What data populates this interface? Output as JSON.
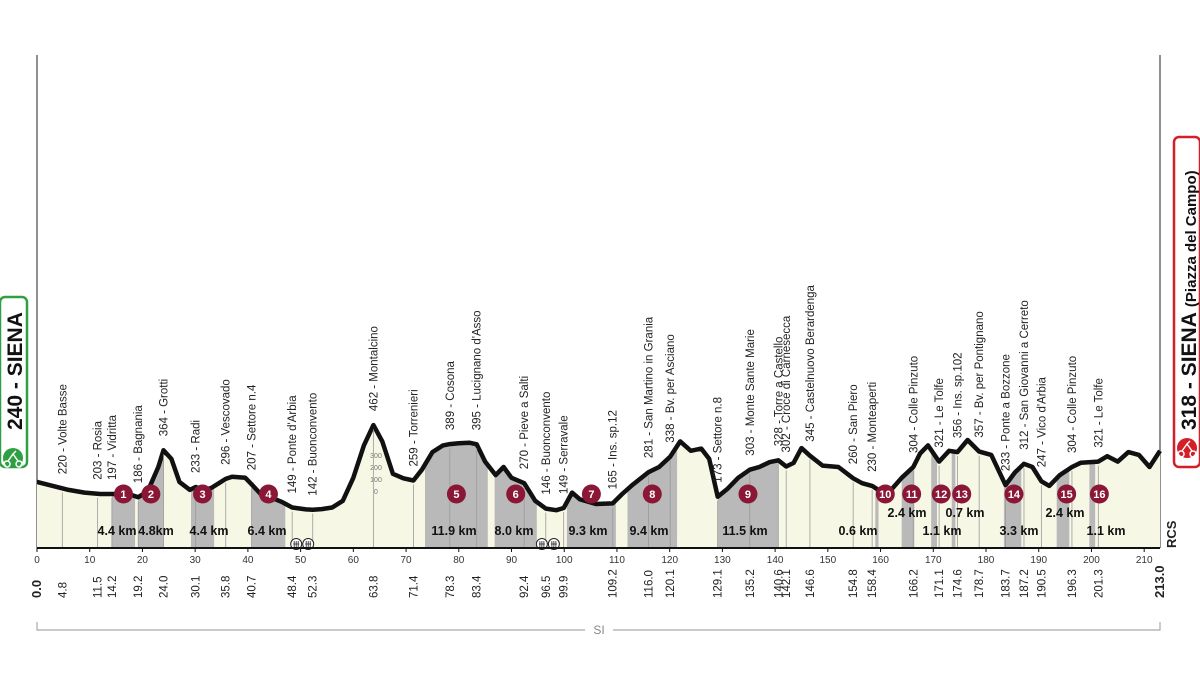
{
  "chart_data": {
    "type": "area",
    "start": {
      "altitude": "240",
      "name": "SIENA"
    },
    "finish": {
      "altitude": "318",
      "name": "SIENA",
      "detail": "(Piazza del Campo)"
    },
    "distance_total": "213.0",
    "x_axis": {
      "min": 0,
      "max": 213,
      "ticks": [
        "0",
        "10",
        "20",
        "30",
        "40",
        "50",
        "60",
        "70",
        "80",
        "90",
        "100",
        "110",
        "120",
        "130",
        "140",
        "150",
        "160",
        "170",
        "180",
        "190",
        "200",
        "210"
      ]
    },
    "altitude_scale": [
      "300",
      "200",
      "100",
      "0"
    ],
    "profile": [
      [
        0,
        245
      ],
      [
        3,
        230
      ],
      [
        6,
        215
      ],
      [
        9,
        205
      ],
      [
        12,
        200
      ],
      [
        15,
        200
      ],
      [
        18,
        196
      ],
      [
        19.2,
        188
      ],
      [
        21,
        210
      ],
      [
        23,
        300
      ],
      [
        24,
        362
      ],
      [
        25.5,
        330
      ],
      [
        27,
        245
      ],
      [
        29,
        215
      ],
      [
        30.1,
        226
      ],
      [
        31.5,
        214
      ],
      [
        33,
        222
      ],
      [
        34.5,
        240
      ],
      [
        35.8,
        256
      ],
      [
        37,
        264
      ],
      [
        39.5,
        260
      ],
      [
        40.7,
        236
      ],
      [
        42.5,
        198
      ],
      [
        44.5,
        186
      ],
      [
        46.5,
        170
      ],
      [
        48.4,
        150
      ],
      [
        51,
        143
      ],
      [
        52.3,
        142
      ],
      [
        54,
        144
      ],
      [
        56,
        150
      ],
      [
        58,
        175
      ],
      [
        60,
        260
      ],
      [
        62,
        380
      ],
      [
        63.8,
        455
      ],
      [
        65.5,
        395
      ],
      [
        67.5,
        275
      ],
      [
        69.5,
        258
      ],
      [
        71.4,
        250
      ],
      [
        73,
        290
      ],
      [
        75,
        355
      ],
      [
        77,
        380
      ],
      [
        78.3,
        385
      ],
      [
        80,
        388
      ],
      [
        82,
        390
      ],
      [
        83.4,
        384
      ],
      [
        85,
        320
      ],
      [
        87,
        270
      ],
      [
        88.5,
        300
      ],
      [
        90,
        260
      ],
      [
        92.4,
        240
      ],
      [
        94.5,
        175
      ],
      [
        96.5,
        146
      ],
      [
        98.5,
        140
      ],
      [
        99.9,
        148
      ],
      [
        101.5,
        205
      ],
      [
        103,
        180
      ],
      [
        106,
        163
      ],
      [
        109.2,
        165
      ],
      [
        111,
        200
      ],
      [
        113,
        235
      ],
      [
        116,
        281
      ],
      [
        118,
        300
      ],
      [
        120.1,
        338
      ],
      [
        122,
        395
      ],
      [
        124,
        360
      ],
      [
        126,
        368
      ],
      [
        127.5,
        330
      ],
      [
        129.1,
        190
      ],
      [
        131,
        220
      ],
      [
        133,
        260
      ],
      [
        135.2,
        290
      ],
      [
        137,
        300
      ],
      [
        139,
        318
      ],
      [
        140.6,
        325
      ],
      [
        142.1,
        302
      ],
      [
        143.5,
        315
      ],
      [
        145,
        370
      ],
      [
        146.6,
        342
      ],
      [
        149,
        305
      ],
      [
        152,
        300
      ],
      [
        154.8,
        258
      ],
      [
        156.5,
        240
      ],
      [
        158.4,
        230
      ],
      [
        160,
        210
      ],
      [
        162,
        215
      ],
      [
        164,
        260
      ],
      [
        166.2,
        300
      ],
      [
        167.5,
        350
      ],
      [
        169,
        380
      ],
      [
        171.1,
        320
      ],
      [
        173,
        360
      ],
      [
        174.6,
        355
      ],
      [
        176.5,
        400
      ],
      [
        178.7,
        357
      ],
      [
        181,
        345
      ],
      [
        183.7,
        233
      ],
      [
        185.5,
        280
      ],
      [
        187.2,
        312
      ],
      [
        188.8,
        300
      ],
      [
        190.5,
        247
      ],
      [
        192,
        230
      ],
      [
        194,
        270
      ],
      [
        196.3,
        300
      ],
      [
        198,
        316
      ],
      [
        201.3,
        320
      ],
      [
        203,
        340
      ],
      [
        205,
        320
      ],
      [
        207,
        355
      ],
      [
        209,
        345
      ],
      [
        211,
        300
      ],
      [
        213,
        360
      ]
    ],
    "towns": [
      {
        "km": "0.0",
        "alt": "",
        "name": ""
      },
      {
        "km": "4.8",
        "alt": "220",
        "name": "Volte Basse"
      },
      {
        "km": "11.5",
        "alt": "203",
        "name": "Rosia"
      },
      {
        "km": "14.2",
        "alt": "197",
        "name": "Vidritta"
      },
      {
        "km": "19.2",
        "alt": "186",
        "name": "Bagnania"
      },
      {
        "km": "24.0",
        "alt": "364",
        "name": "Grotti"
      },
      {
        "km": "30.1",
        "alt": "233",
        "name": "Radi"
      },
      {
        "km": "35.8",
        "alt": "296",
        "name": "Vescovado"
      },
      {
        "km": "40.7",
        "alt": "207",
        "name": "Settore n.4"
      },
      {
        "km": "48.4",
        "alt": "149",
        "name": "Ponte d'Arbia"
      },
      {
        "km": "52.3",
        "alt": "142",
        "name": "Buonconvento"
      },
      {
        "km": "63.8",
        "alt": "462",
        "name": "Montalcino"
      },
      {
        "km": "71.4",
        "alt": "259",
        "name": "Torrenieri"
      },
      {
        "km": "78.3",
        "alt": "389",
        "name": "Cosona"
      },
      {
        "km": "83.4",
        "alt": "395",
        "name": "Lucignano d'Asso"
      },
      {
        "km": "92.4",
        "alt": "270",
        "name": "Pieve a Salti"
      },
      {
        "km": "96.5",
        "alt": "146",
        "name": "Buonconvento"
      },
      {
        "km": "99.9",
        "alt": "149",
        "name": "Serravale"
      },
      {
        "km": "109.2",
        "alt": "165",
        "name": "Ins. sp.12"
      },
      {
        "km": "116.0",
        "alt": "281",
        "name": "San Martino in Grania"
      },
      {
        "km": "120.1",
        "alt": "338",
        "name": "Bv. per Asciano"
      },
      {
        "km": "129.1",
        "alt": "173",
        "name": "Settore n.8"
      },
      {
        "km": "135.2",
        "alt": "303",
        "name": "Monte Sante Marie"
      },
      {
        "km": "140.6",
        "alt": "328",
        "name": "Torre a Castello"
      },
      {
        "km": "142.1",
        "alt": "302",
        "name": "Croce di Carnesecca"
      },
      {
        "km": "146.6",
        "alt": "345",
        "name": "Castelnuovo Berardenga"
      },
      {
        "km": "154.8",
        "alt": "260",
        "name": "San Piero"
      },
      {
        "km": "158.4",
        "alt": "230",
        "name": "Monteaperti"
      },
      {
        "km": "166.2",
        "alt": "304",
        "name": "Colle Pinzuto"
      },
      {
        "km": "171.1",
        "alt": "321",
        "name": "Le Tolfe"
      },
      {
        "km": "174.6",
        "alt": "356",
        "name": "Ins. sp.102"
      },
      {
        "km": "178.7",
        "alt": "357",
        "name": "Bv. per Pontignano"
      },
      {
        "km": "183.7",
        "alt": "233",
        "name": "Ponte a Bozzone"
      },
      {
        "km": "187.2",
        "alt": "312",
        "name": "San Giovanni a Cerreto"
      },
      {
        "km": "190.5",
        "alt": "247",
        "name": "Vico d'Arbia"
      },
      {
        "km": "196.3",
        "alt": "304",
        "name": "Colle Pinzuto"
      },
      {
        "km": "201.3",
        "alt": "321",
        "name": "Le Tolfe"
      },
      {
        "km": "213.0",
        "alt": "",
        "name": ""
      }
    ],
    "sectors": [
      {
        "num": "1",
        "start": 14.2,
        "length": "4.4 km"
      },
      {
        "num": "2",
        "start": 19.2,
        "length": "4.8km"
      },
      {
        "num": "3",
        "start": 29.2,
        "length": "4.4 km"
      },
      {
        "num": "4",
        "start": 40.7,
        "length": "6.4 km"
      },
      {
        "num": "5",
        "start": 73.6,
        "length": "11.9 km"
      },
      {
        "num": "6",
        "start": 86.8,
        "length": "8.0 km"
      },
      {
        "num": "7",
        "start": 100.5,
        "length": "9.3 km"
      },
      {
        "num": "8",
        "start": 112.0,
        "length": "9.4 km"
      },
      {
        "num": "9",
        "start": 129.1,
        "length": "11.5 km"
      },
      {
        "num": "10",
        "start": 159.0,
        "length": "0.6 km"
      },
      {
        "num": "11",
        "start": 164.0,
        "length": "2.4 km"
      },
      {
        "num": "12",
        "start": 169.6,
        "length": "1.1 km"
      },
      {
        "num": "13",
        "start": 173.5,
        "length": "0.7 km"
      },
      {
        "num": "14",
        "start": 183.4,
        "length": "3.3 km"
      },
      {
        "num": "15",
        "start": 193.4,
        "length": "2.4 km"
      },
      {
        "num": "16",
        "start": 199.6,
        "length": "1.1 km"
      }
    ],
    "feed_zones_km": [
      50.3,
      96.9
    ],
    "region_label": "SI",
    "brand": "RCS",
    "colors": {
      "sector_fill": "#b9b9b9",
      "profile_fill": "#f7f7e6",
      "marker": "#8b1736",
      "start_green": "#2ea043",
      "finish_red": "#d21f28"
    }
  }
}
